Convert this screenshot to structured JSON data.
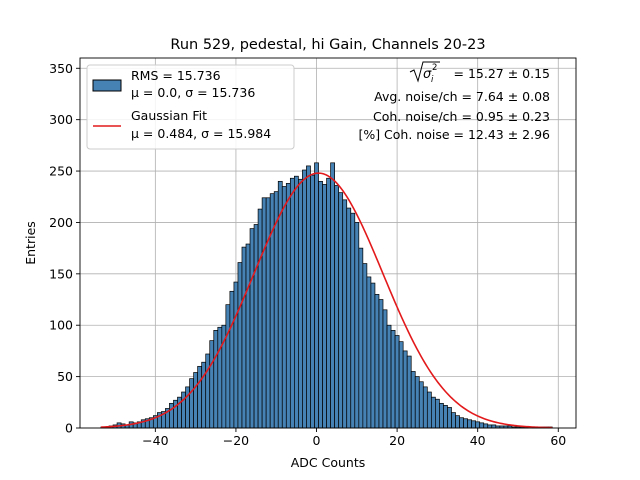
{
  "chart_data": {
    "type": "bar",
    "title": "Run 529, pedestal, hi Gain, Channels 20-23",
    "xlabel": "ADC Counts",
    "ylabel": "Entries",
    "xlim": [
      -58.7,
      64.4
    ],
    "ylim": [
      0,
      360
    ],
    "xticks": [
      -40,
      -20,
      0,
      20,
      40,
      60
    ],
    "yticks": [
      0,
      50,
      100,
      150,
      200,
      250,
      300,
      350
    ],
    "grid": true,
    "bar_color": "#4682b4",
    "edge_color": "#000000",
    "bin_width": 1,
    "histogram": {
      "x": [
        -53,
        -52,
        -51,
        -50,
        -49,
        -48,
        -47,
        -46,
        -45,
        -44,
        -43,
        -42,
        -41,
        -40,
        -39,
        -38,
        -37,
        -36,
        -35,
        -34,
        -33,
        -32,
        -31,
        -30,
        -29,
        -28,
        -27,
        -26,
        -25,
        -24,
        -23,
        -22,
        -21,
        -20,
        -19,
        -18,
        -17,
        -16,
        -15,
        -14,
        -13,
        -12,
        -11,
        -10,
        -9,
        -8,
        -7,
        -6,
        -5,
        -4,
        -3,
        -2,
        -1,
        0,
        1,
        2,
        3,
        4,
        5,
        6,
        7,
        8,
        9,
        10,
        11,
        12,
        13,
        14,
        15,
        16,
        17,
        18,
        19,
        20,
        21,
        22,
        23,
        24,
        25,
        26,
        27,
        28,
        29,
        30,
        31,
        32,
        33,
        34,
        35,
        36,
        37,
        38,
        39,
        40,
        41,
        42,
        43,
        44,
        45,
        46,
        47,
        48,
        49,
        50,
        51,
        52,
        53,
        54,
        55,
        56,
        57,
        58
      ],
      "values": [
        1,
        1,
        2,
        3,
        5,
        4,
        3,
        6,
        5,
        6,
        8,
        9,
        10,
        12,
        15,
        16,
        19,
        24,
        27,
        30,
        35,
        40,
        48,
        54,
        60,
        64,
        72,
        85,
        95,
        98,
        100,
        120,
        133,
        142,
        161,
        176,
        179,
        194,
        198,
        213,
        224,
        224,
        228,
        230,
        240,
        235,
        238,
        243,
        245,
        242,
        251,
        255,
        246,
        258,
        240,
        237,
        243,
        258,
        236,
        229,
        222,
        214,
        209,
        200,
        175,
        160,
        147,
        141,
        130,
        125,
        115,
        100,
        95,
        90,
        84,
        75,
        70,
        55,
        50,
        45,
        40,
        35,
        30,
        28,
        24,
        22,
        20,
        15,
        12,
        10,
        9,
        8,
        7,
        6,
        5,
        4,
        3,
        3,
        2,
        2,
        2,
        2,
        1,
        1,
        1,
        1,
        0,
        1,
        1,
        1,
        1,
        1
      ]
    },
    "fit": {
      "name": "Gaussian Fit",
      "amplitude": 248,
      "mu": 0.484,
      "sigma": 15.984,
      "x_range": [
        -53.5,
        58.5
      ],
      "color": "#e31a1c"
    },
    "legend": {
      "placement": "top-left",
      "entries": [
        {
          "line1": "RMS = 15.736",
          "line2": "μ = 0.0, σ = 15.736",
          "kind": "patch"
        },
        {
          "line1": "Gaussian Fit",
          "line2": "μ = 0.484, σ = 15.984",
          "kind": "line"
        }
      ]
    },
    "annotations": {
      "sigma_text": " = 15.27 ± 0.15",
      "avg_noise": "Avg. noise/ch = 7.64 ± 0.08",
      "coh_noise": "Coh. noise/ch = 0.95 ± 0.23",
      "coh_noise_pct": "[%] Coh. noise = 12.43 ± 2.96"
    }
  }
}
